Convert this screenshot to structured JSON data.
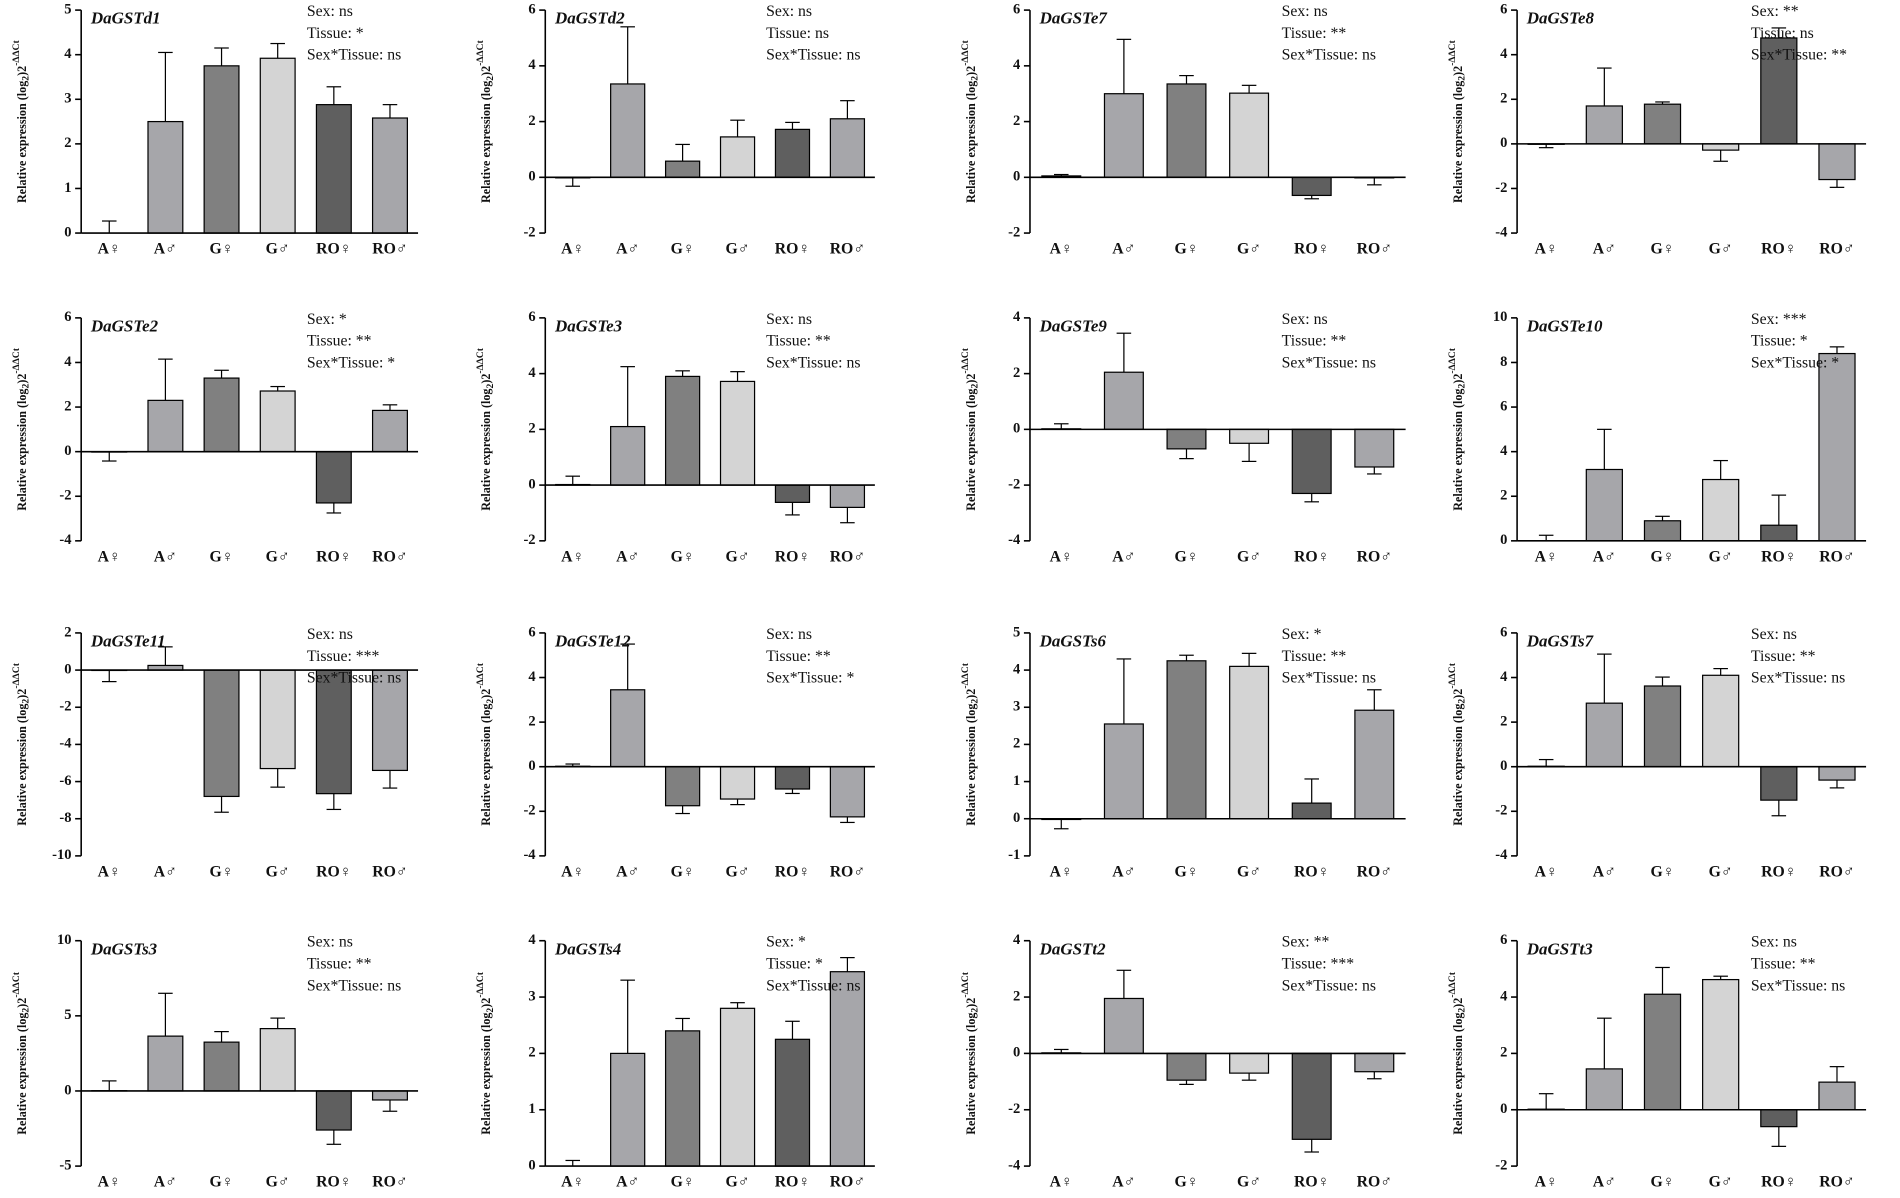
{
  "chart_data": [
    {
      "type": "bar",
      "title": "DaGSTd1",
      "annotations": [
        "Sex: ns",
        "Tissue: *",
        "Sex*Tissue: ns"
      ],
      "ylabel": {
        "text": "Relative expression (log",
        "sub": "2",
        "after": ")2",
        "sup": "-ΔΔCt"
      },
      "categories": [
        "A♀",
        "A♂",
        "G♀",
        "G♂",
        "RO♀",
        "RO♂"
      ],
      "values": [
        0,
        2.5,
        3.75,
        3.92,
        2.88,
        2.58
      ],
      "errors": [
        0.27,
        1.55,
        0.4,
        0.33,
        0.4,
        0.3
      ],
      "colors": [
        "#a6a6aa",
        "#a6a6aa",
        "#808080",
        "#d4d4d4",
        "#5f5f5f",
        "#a6a6aa"
      ],
      "ylim": [
        0,
        5
      ],
      "yticks": [
        0,
        1,
        2,
        3,
        4,
        5
      ]
    },
    {
      "type": "bar",
      "title": "DaGSTd2",
      "annotations": [
        "Sex: ns",
        "Tissue: ns",
        "Sex*Tissue: ns"
      ],
      "ylabel": {
        "text": "Relative expression (log",
        "sub": "2",
        "after": ")2",
        "sup": "-ΔΔCt"
      },
      "categories": [
        "A♀",
        "A♂",
        "G♀",
        "G♂",
        "RO♀",
        "RO♂"
      ],
      "values": [
        -0.02,
        3.35,
        0.58,
        1.45,
        1.72,
        2.1
      ],
      "errors": [
        0.3,
        2.05,
        0.6,
        0.6,
        0.25,
        0.65
      ],
      "colors": [
        "#a6a6aa",
        "#a6a6aa",
        "#808080",
        "#d4d4d4",
        "#5f5f5f",
        "#a6a6aa"
      ],
      "ylim": [
        -2,
        6
      ],
      "yticks": [
        -2,
        0,
        2,
        4,
        6
      ]
    },
    {
      "type": "bar",
      "title": "DaGSTe7",
      "annotations": [
        "Sex: ns",
        "Tissue: **",
        "Sex*Tissue: ns"
      ],
      "ylabel": {
        "text": "Relative expression (log",
        "sub": "2",
        "after": ")2",
        "sup": "-ΔΔCt"
      },
      "categories": [
        "A♀",
        "A♂",
        "G♀",
        "G♂",
        "RO♀",
        "RO♂"
      ],
      "values": [
        0.05,
        3.0,
        3.35,
        3.02,
        -0.65,
        -0.02
      ],
      "errors": [
        0.05,
        1.95,
        0.3,
        0.28,
        0.12,
        0.25
      ],
      "colors": [
        "#a6a6aa",
        "#a6a6aa",
        "#808080",
        "#d4d4d4",
        "#5f5f5f",
        "#a6a6aa"
      ],
      "ylim": [
        -2,
        6
      ],
      "yticks": [
        -2,
        0,
        2,
        4,
        6
      ]
    },
    {
      "type": "bar",
      "title": "DaGSTe8",
      "annotations": [
        "Sex: **",
        "Tissue: ns",
        "Sex*Tissue: **"
      ],
      "ylabel": {
        "text": "Relative expression (log",
        "sub": "2",
        "after": ")2",
        "sup": "-ΔΔCt"
      },
      "categories": [
        "A♀",
        "A♂",
        "G♀",
        "G♂",
        "RO♀",
        "RO♂"
      ],
      "values": [
        -0.02,
        1.7,
        1.78,
        -0.28,
        4.75,
        -1.6
      ],
      "errors": [
        0.15,
        1.7,
        0.1,
        0.5,
        0.45,
        0.35
      ],
      "colors": [
        "#a6a6aa",
        "#a6a6aa",
        "#808080",
        "#d4d4d4",
        "#5f5f5f",
        "#a6a6aa"
      ],
      "ylim": [
        -4,
        6
      ],
      "yticks": [
        -4,
        -2,
        0,
        2,
        4,
        6
      ]
    },
    {
      "type": "bar",
      "title": "DaGSTe2",
      "annotations": [
        "Sex: *",
        "Tissue: **",
        "Sex*Tissue: *"
      ],
      "ylabel": {
        "text": "Relative expression (log",
        "sub": "2",
        "after": ")2",
        "sup": "-ΔΔCt"
      },
      "categories": [
        "A♀",
        "A♂",
        "G♀",
        "G♂",
        "RO♀",
        "RO♂"
      ],
      "values": [
        -0.02,
        2.3,
        3.3,
        2.72,
        -2.3,
        1.85
      ],
      "errors": [
        0.4,
        1.85,
        0.35,
        0.2,
        0.45,
        0.25
      ],
      "colors": [
        "#a6a6aa",
        "#a6a6aa",
        "#808080",
        "#d4d4d4",
        "#5f5f5f",
        "#a6a6aa"
      ],
      "ylim": [
        -4,
        6
      ],
      "yticks": [
        -4,
        -2,
        0,
        2,
        4,
        6
      ]
    },
    {
      "type": "bar",
      "title": "DaGSTe3",
      "annotations": [
        "Sex: ns",
        "Tissue: **",
        "Sex*Tissue: ns"
      ],
      "ylabel": {
        "text": "Relative expression (log",
        "sub": "2",
        "after": ")2",
        "sup": "-ΔΔCt"
      },
      "categories": [
        "A♀",
        "A♂",
        "G♀",
        "G♂",
        "RO♀",
        "RO♂"
      ],
      "values": [
        0.02,
        2.1,
        3.9,
        3.72,
        -0.62,
        -0.8
      ],
      "errors": [
        0.3,
        2.15,
        0.2,
        0.35,
        0.45,
        0.55
      ],
      "colors": [
        "#a6a6aa",
        "#a6a6aa",
        "#808080",
        "#d4d4d4",
        "#5f5f5f",
        "#a6a6aa"
      ],
      "ylim": [
        -2,
        6
      ],
      "yticks": [
        -2,
        0,
        2,
        4,
        6
      ]
    },
    {
      "type": "bar",
      "title": "DaGSTe9",
      "annotations": [
        "Sex: ns",
        "Tissue: **",
        "Sex*Tissue: ns"
      ],
      "ylabel": {
        "text": "Relative expression (log",
        "sub": "2",
        "after": ")2",
        "sup": "-ΔΔCt"
      },
      "categories": [
        "A♀",
        "A♂",
        "G♀",
        "G♂",
        "RO♀",
        "RO♂"
      ],
      "values": [
        0.02,
        2.05,
        -0.7,
        -0.5,
        -2.3,
        -1.35
      ],
      "errors": [
        0.18,
        1.4,
        0.35,
        0.65,
        0.3,
        0.25
      ],
      "colors": [
        "#a6a6aa",
        "#a6a6aa",
        "#808080",
        "#d4d4d4",
        "#5f5f5f",
        "#a6a6aa"
      ],
      "ylim": [
        -4,
        4
      ],
      "yticks": [
        -4,
        -2,
        0,
        2,
        4
      ]
    },
    {
      "type": "bar",
      "title": "DaGSTe10",
      "annotations": [
        "Sex: ***",
        "Tissue: *",
        "Sex*Tissue: *"
      ],
      "ylabel": {
        "text": "Relative expression (log",
        "sub": "2",
        "after": ")2",
        "sup": "-ΔΔCt"
      },
      "categories": [
        "A♀",
        "A♂",
        "G♀",
        "G♂",
        "RO♀",
        "RO♂"
      ],
      "values": [
        0,
        3.2,
        0.9,
        2.75,
        0.7,
        8.4
      ],
      "errors": [
        0.25,
        1.8,
        0.2,
        0.85,
        1.35,
        0.3
      ],
      "colors": [
        "#a6a6aa",
        "#a6a6aa",
        "#808080",
        "#d4d4d4",
        "#5f5f5f",
        "#a6a6aa"
      ],
      "ylim": [
        0,
        10
      ],
      "yticks": [
        0,
        2,
        4,
        6,
        8,
        10
      ]
    },
    {
      "type": "bar",
      "title": "DaGSTe11",
      "annotations": [
        "Sex: ns",
        "Tissue: ***",
        "Sex*Tissue: ns"
      ],
      "ylabel": {
        "text": "Relative expression (log",
        "sub": "2",
        "after": ")2",
        "sup": "-ΔΔCt"
      },
      "categories": [
        "A♀",
        "A♂",
        "G♀",
        "G♂",
        "RO♀",
        "RO♂"
      ],
      "values": [
        -0.02,
        0.25,
        -6.8,
        -5.3,
        -6.65,
        -5.4
      ],
      "errors": [
        0.6,
        1.0,
        0.85,
        1.0,
        0.85,
        0.95
      ],
      "colors": [
        "#a6a6aa",
        "#a6a6aa",
        "#808080",
        "#d4d4d4",
        "#5f5f5f",
        "#a6a6aa"
      ],
      "ylim": [
        -10,
        2
      ],
      "yticks": [
        -10,
        -8,
        -6,
        -4,
        -2,
        0,
        2
      ]
    },
    {
      "type": "bar",
      "title": "DaGSTe12",
      "annotations": [
        "Sex: ns",
        "Tissue: **",
        "Sex*Tissue: *"
      ],
      "ylabel": {
        "text": "Relative expression (log",
        "sub": "2",
        "after": ")2",
        "sup": "-ΔΔCt"
      },
      "categories": [
        "A♀",
        "A♂",
        "G♀",
        "G♂",
        "RO♀",
        "RO♂"
      ],
      "values": [
        0.02,
        3.45,
        -1.75,
        -1.45,
        -1.0,
        -2.25
      ],
      "errors": [
        0.1,
        2.05,
        0.35,
        0.25,
        0.2,
        0.25
      ],
      "colors": [
        "#a6a6aa",
        "#a6a6aa",
        "#808080",
        "#d4d4d4",
        "#5f5f5f",
        "#a6a6aa"
      ],
      "ylim": [
        -4,
        6
      ],
      "yticks": [
        -4,
        -2,
        0,
        2,
        4,
        6
      ]
    },
    {
      "type": "bar",
      "title": "DaGSTs6",
      "annotations": [
        "Sex: *",
        "Tissue: **",
        "Sex*Tissue: ns"
      ],
      "ylabel": {
        "text": "Relative expression (log",
        "sub": "2",
        "after": ")2",
        "sup": "-ΔΔCt"
      },
      "categories": [
        "A♀",
        "A♂",
        "G♀",
        "G♂",
        "RO♀",
        "RO♂"
      ],
      "values": [
        -0.02,
        2.55,
        4.25,
        4.1,
        0.42,
        2.92
      ],
      "errors": [
        0.25,
        1.75,
        0.15,
        0.35,
        0.65,
        0.55
      ],
      "colors": [
        "#a6a6aa",
        "#a6a6aa",
        "#808080",
        "#d4d4d4",
        "#5f5f5f",
        "#a6a6aa"
      ],
      "ylim": [
        -1,
        5
      ],
      "yticks": [
        -1,
        0,
        1,
        2,
        3,
        4,
        5
      ]
    },
    {
      "type": "bar",
      "title": "DaGSTs7",
      "annotations": [
        "Sex: ns",
        "Tissue: **",
        "Sex*Tissue: ns"
      ],
      "ylabel": {
        "text": "Relative expression (log",
        "sub": "2",
        "after": ")2",
        "sup": "-ΔΔCt"
      },
      "categories": [
        "A♀",
        "A♂",
        "G♀",
        "G♂",
        "RO♀",
        "RO♂"
      ],
      "values": [
        0.02,
        2.85,
        3.62,
        4.1,
        -1.5,
        -0.6
      ],
      "errors": [
        0.3,
        2.2,
        0.4,
        0.3,
        0.7,
        0.35
      ],
      "colors": [
        "#a6a6aa",
        "#a6a6aa",
        "#808080",
        "#d4d4d4",
        "#5f5f5f",
        "#a6a6aa"
      ],
      "ylim": [
        -4,
        6
      ],
      "yticks": [
        -4,
        -2,
        0,
        2,
        4,
        6
      ]
    },
    {
      "type": "bar",
      "title": "DaGSTs3",
      "annotations": [
        "Sex: ns",
        "Tissue: **",
        "Sex*Tissue: ns"
      ],
      "ylabel": {
        "text": "Relative expression (log",
        "sub": "2",
        "after": ")2",
        "sup": "-ΔΔCt"
      },
      "categories": [
        "A♀",
        "A♂",
        "G♀",
        "G♂",
        "RO♀",
        "RO♂"
      ],
      "values": [
        0.02,
        3.65,
        3.25,
        4.15,
        -2.6,
        -0.6
      ],
      "errors": [
        0.65,
        2.85,
        0.7,
        0.7,
        0.95,
        0.75
      ],
      "colors": [
        "#a6a6aa",
        "#a6a6aa",
        "#808080",
        "#d4d4d4",
        "#5f5f5f",
        "#a6a6aa"
      ],
      "ylim": [
        -5,
        10
      ],
      "yticks": [
        -5,
        0,
        5,
        10
      ]
    },
    {
      "type": "bar",
      "title": "DaGSTs4",
      "annotations": [
        "Sex: *",
        "Tissue: *",
        "Sex*Tissue: ns"
      ],
      "ylabel": {
        "text": "Relative expression (log",
        "sub": "2",
        "after": ")2",
        "sup": "-ΔΔCt"
      },
      "categories": [
        "A♀",
        "A♂",
        "G♀",
        "G♂",
        "RO♀",
        "RO♂"
      ],
      "values": [
        0,
        2.0,
        2.4,
        2.8,
        2.25,
        3.45
      ],
      "errors": [
        0.1,
        1.3,
        0.22,
        0.1,
        0.32,
        0.25
      ],
      "colors": [
        "#a6a6aa",
        "#a6a6aa",
        "#808080",
        "#d4d4d4",
        "#5f5f5f",
        "#a6a6aa"
      ],
      "ylim": [
        0,
        4
      ],
      "yticks": [
        0,
        1,
        2,
        3,
        4
      ]
    },
    {
      "type": "bar",
      "title": "DaGSTt2",
      "annotations": [
        "Sex: **",
        "Tissue: ***",
        "Sex*Tissue: ns"
      ],
      "ylabel": {
        "text": "Relative expression (log",
        "sub": "2",
        "after": ")2",
        "sup": "-ΔΔCt"
      },
      "categories": [
        "A♀",
        "A♂",
        "G♀",
        "G♂",
        "RO♀",
        "RO♂"
      ],
      "values": [
        0.02,
        1.95,
        -0.95,
        -0.7,
        -3.05,
        -0.65
      ],
      "errors": [
        0.12,
        1.0,
        0.15,
        0.25,
        0.45,
        0.25
      ],
      "colors": [
        "#a6a6aa",
        "#a6a6aa",
        "#808080",
        "#d4d4d4",
        "#5f5f5f",
        "#a6a6aa"
      ],
      "ylim": [
        -4,
        4
      ],
      "yticks": [
        -4,
        -2,
        0,
        2,
        4
      ]
    },
    {
      "type": "bar",
      "title": "DaGSTt3",
      "annotations": [
        "Sex: ns",
        "Tissue: **",
        "Sex*Tissue: ns"
      ],
      "ylabel": {
        "text": "Relative expression (log",
        "sub": "2",
        "after": ")2",
        "sup": "-ΔΔCt"
      },
      "categories": [
        "A♀",
        "A♂",
        "G♀",
        "G♂",
        "RO♀",
        "RO♂"
      ],
      "values": [
        0.02,
        1.45,
        4.1,
        4.62,
        -0.6,
        0.98
      ],
      "errors": [
        0.55,
        1.8,
        0.95,
        0.12,
        0.7,
        0.55
      ],
      "colors": [
        "#a6a6aa",
        "#a6a6aa",
        "#808080",
        "#d4d4d4",
        "#5f5f5f",
        "#a6a6aa"
      ],
      "ylim": [
        -2,
        6
      ],
      "yticks": [
        -2,
        0,
        2,
        4,
        6
      ]
    }
  ]
}
